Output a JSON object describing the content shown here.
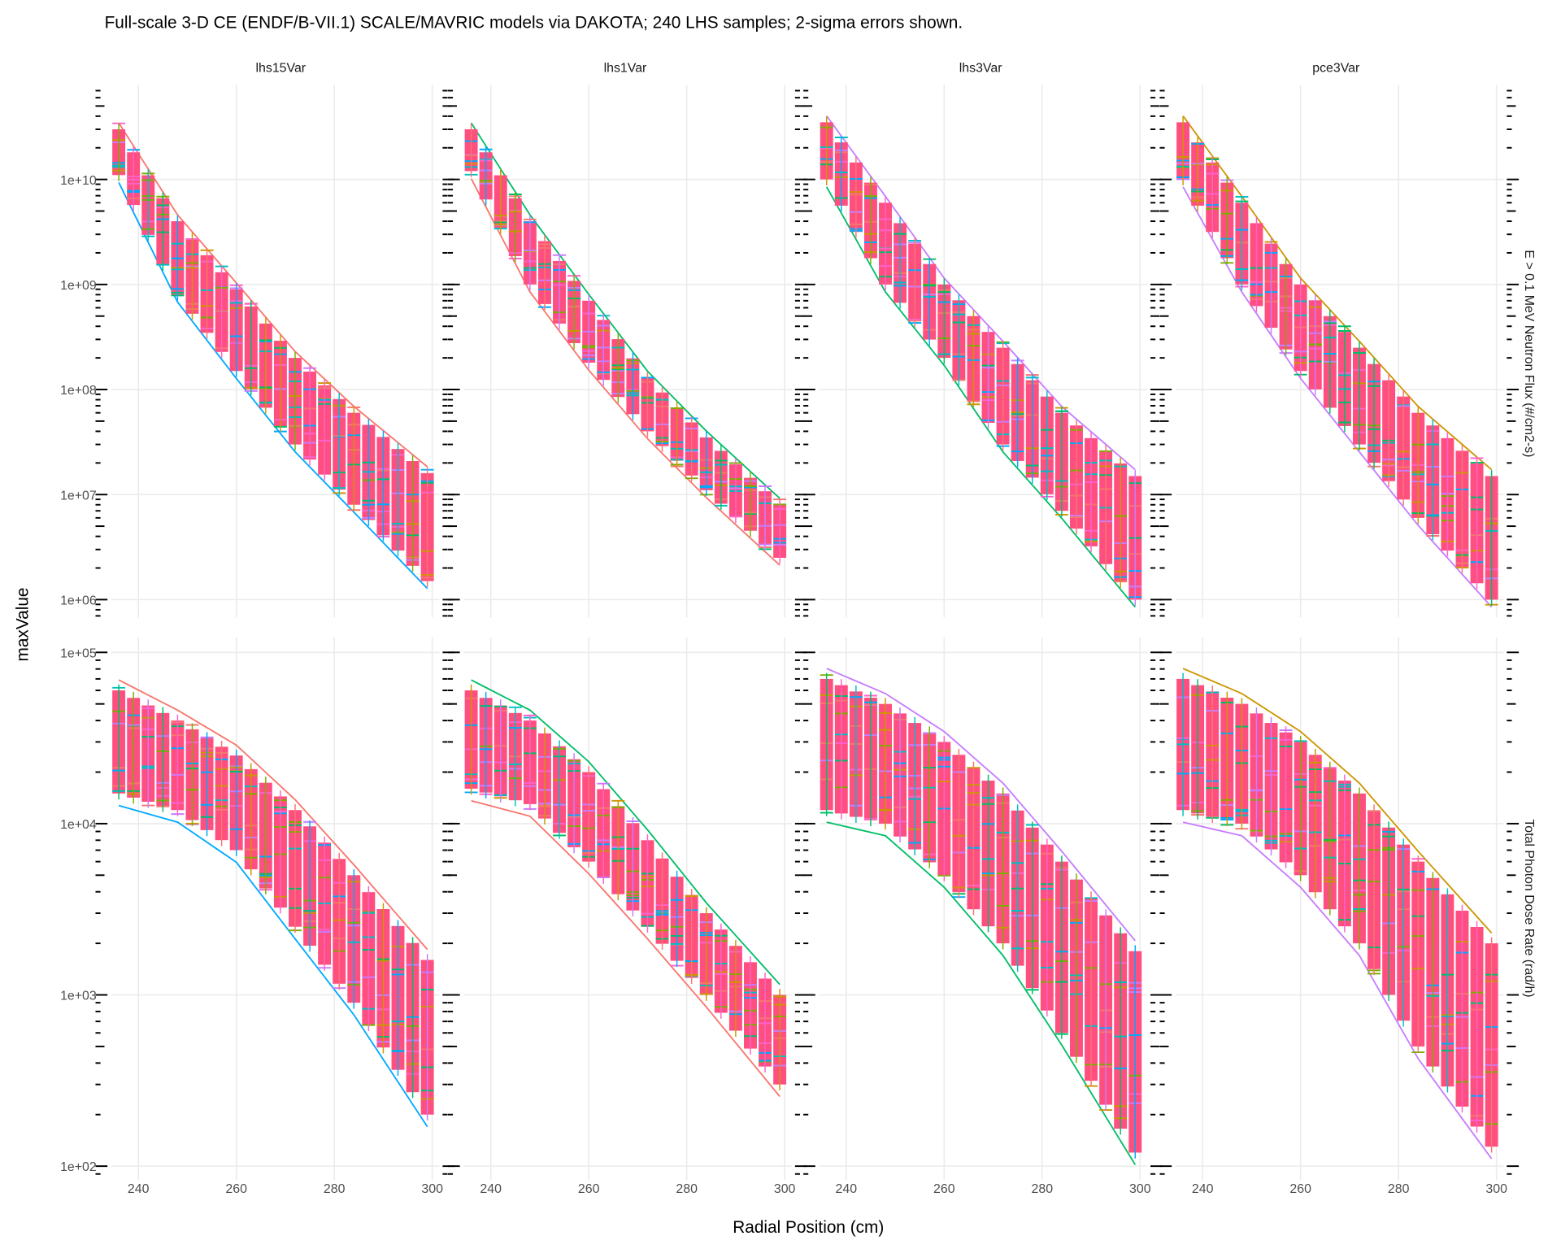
{
  "title": "Full-scale 3-D CE (ENDF/B-VII.1) SCALE/MAVRIC models via DAKOTA; 240 LHS samples; 2-sigma errors shown.",
  "colors": {
    "band": "#FF4F80",
    "series_palette": [
      "#F8766D",
      "#CD9600",
      "#7CAE00",
      "#00BE67",
      "#00BFC4",
      "#00A9FF",
      "#C77CFF",
      "#FF61CC"
    ],
    "grid": "#EBEBEB",
    "rug": "#000000"
  },
  "chart_data": {
    "type": "scatter",
    "layout": "facet grid 2 rows x 4 columns, error bars",
    "xlabel": "Radial Position (cm)",
    "ylabel": "maxValue",
    "x_ticks": [
      "240",
      "260",
      "280",
      "300"
    ],
    "x_range": [
      235,
      301
    ],
    "y_scale": "log",
    "grid": true,
    "columns": [
      "lhs15Var",
      "lhs1Var",
      "lhs3Var",
      "pce3Var"
    ],
    "rows": [
      {
        "label": "E > 0.1 MeV Neutron Flux (#/cm2-s)",
        "y_range": [
          700000,
          80000000000
        ],
        "y_ticks": [
          "1e+06",
          "1e+07",
          "1e+08",
          "1e+09",
          "1e+10"
        ],
        "panels": [
          {
            "x": [
              236,
              248,
              260,
              272,
              284,
              299
            ],
            "upper": [
              30000000000.0,
              4000000000.0,
              900000000.0,
              200000000.0,
              60000000.0,
              16000000.0
            ],
            "lower": [
              11000000000.0,
              800000000.0,
              150000000.0,
              30000000.0,
              8000000.0,
              1500000.0
            ]
          },
          {
            "x": [
              236,
              248,
              260,
              272,
              284,
              299
            ],
            "upper": [
              30000000000.0,
              4000000000.0,
              700000000.0,
              130000000.0,
              35000000.0,
              8000000.0
            ],
            "lower": [
              12000000000.0,
              1000000000.0,
              180000000.0,
              40000000.0,
              11000000.0,
              2500000.0
            ]
          },
          {
            "x": [
              236,
              248,
              260,
              272,
              284,
              299
            ],
            "upper": [
              35000000000.0,
              6000000000.0,
              1000000000.0,
              250000000.0,
              60000000.0,
              15000000.0
            ],
            "lower": [
              10000000000.0,
              1000000000.0,
              200000000.0,
              30000000.0,
              7000000.0,
              1000000.0
            ]
          },
          {
            "x": [
              236,
              248,
              260,
              272,
              284,
              299
            ],
            "upper": [
              35000000000.0,
              6000000000.0,
              1000000000.0,
              250000000.0,
              60000000.0,
              15000000.0
            ],
            "lower": [
              10000000000.0,
              1000000000.0,
              150000000.0,
              30000000.0,
              6000000.0,
              1000000.0
            ]
          }
        ]
      },
      {
        "label": "Total Photon Dose Rate (rad/h)",
        "y_range": [
          83,
          120000
        ],
        "y_ticks": [
          "1e+02",
          "1e+03",
          "1e+04",
          "1e+05"
        ],
        "panels": [
          {
            "x": [
              236,
              248,
              260,
              272,
              284,
              299
            ],
            "upper": [
              60000.0,
              40000.0,
              25000.0,
              12000.0,
              5000.0,
              1600.0
            ],
            "lower": [
              15000.0,
              12000.0,
              7000.0,
              2500.0,
              900,
              200
            ]
          },
          {
            "x": [
              236,
              248,
              260,
              272,
              284,
              299
            ],
            "upper": [
              60000.0,
              40000.0,
              20000.0,
              8000.0,
              3000.0,
              1000.0
            ],
            "lower": [
              16000.0,
              13000.0,
              6000.0,
              2500.0,
              1000.0,
              300
            ]
          },
          {
            "x": [
              236,
              248,
              260,
              272,
              284,
              299
            ],
            "upper": [
              70000.0,
              50000.0,
              30000.0,
              15000.0,
              6000.0,
              1800.0
            ],
            "lower": [
              12000.0,
              10000.0,
              5000.0,
              2000.0,
              600,
              120
            ]
          },
          {
            "x": [
              236,
              248,
              260,
              272,
              284,
              299
            ],
            "upper": [
              70000.0,
              50000.0,
              30000.0,
              15000.0,
              6000.0,
              2000.0
            ],
            "lower": [
              12000.0,
              10000.0,
              5000.0,
              2000.0,
              500,
              130
            ]
          }
        ]
      }
    ]
  }
}
